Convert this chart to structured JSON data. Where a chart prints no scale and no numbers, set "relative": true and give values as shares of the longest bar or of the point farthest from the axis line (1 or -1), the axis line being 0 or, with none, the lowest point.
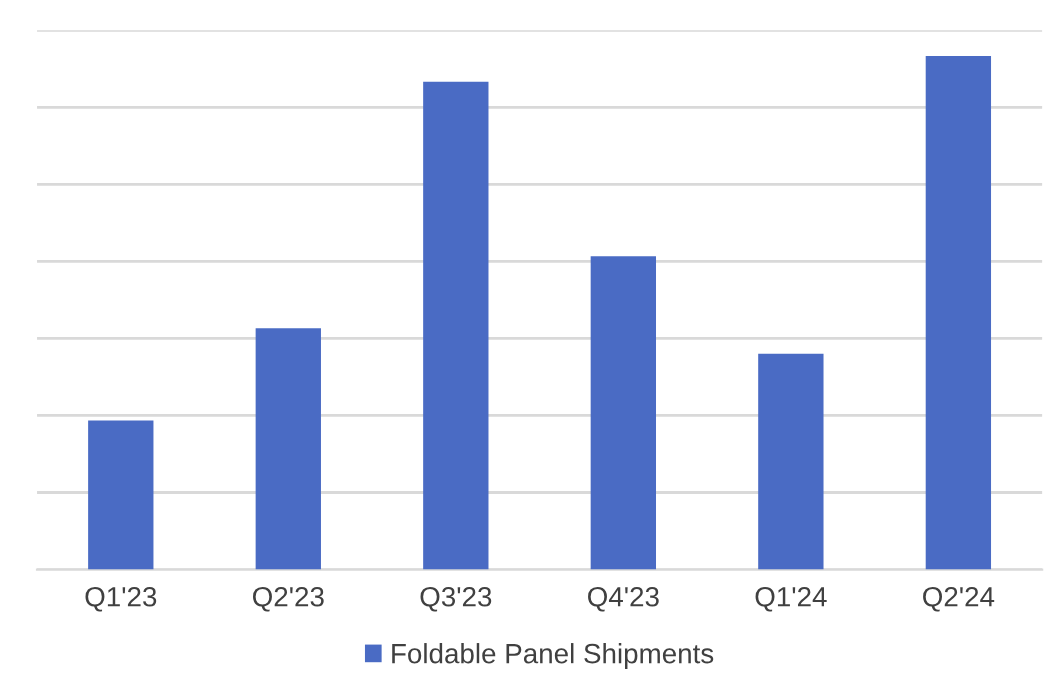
{
  "chart_data": {
    "type": "bar",
    "relative": true,
    "categories": [
      "Q1'23",
      "Q2'23",
      "Q3'23",
      "Q4'23",
      "Q1'24",
      "Q2'24"
    ],
    "series": [
      {
        "name": "Foldable Panel Shipments",
        "color": "#4a6bc4",
        "values": [
          0.29,
          0.47,
          0.95,
          0.61,
          0.42,
          1.0
        ]
      }
    ],
    "grid": "y",
    "legend": "bottom"
  }
}
